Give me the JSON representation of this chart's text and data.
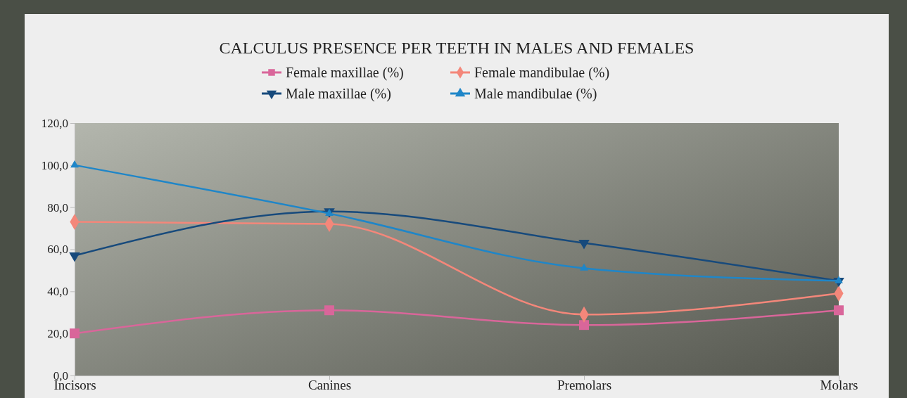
{
  "chart_data": {
    "type": "line",
    "title": "CALCULUS PRESENCE PER TEETH IN MALES AND FEMALES",
    "categories": [
      "Incisors",
      "Canines",
      "Premolars",
      "Molars"
    ],
    "series": [
      {
        "name": "Female maxillae (%)",
        "color": "#d9669a",
        "marker": "square",
        "values": [
          20,
          31,
          24,
          31
        ]
      },
      {
        "name": "Female mandibulae (%)",
        "color": "#f4877a",
        "marker": "diamond",
        "values": [
          73,
          72,
          29,
          39
        ]
      },
      {
        "name": "Male maxillae (%)",
        "color": "#174a7c",
        "marker": "triangle-down",
        "values": [
          57,
          78,
          63,
          45
        ]
      },
      {
        "name": "Male mandibulae (%)",
        "color": "#1f86c8",
        "marker": "triangle",
        "values": [
          100,
          77,
          51,
          45
        ]
      }
    ],
    "ylim": [
      0,
      120
    ],
    "yticks": [
      {
        "value": 0,
        "label": "0,0"
      },
      {
        "value": 20,
        "label": "20,0"
      },
      {
        "value": 40,
        "label": "40,0"
      },
      {
        "value": 60,
        "label": "60,0"
      },
      {
        "value": 80,
        "label": "80,0"
      },
      {
        "value": 100,
        "label": "100,0"
      },
      {
        "value": 120,
        "label": "120,0"
      }
    ],
    "legend": "top",
    "grid": false,
    "line_style": "solid"
  }
}
